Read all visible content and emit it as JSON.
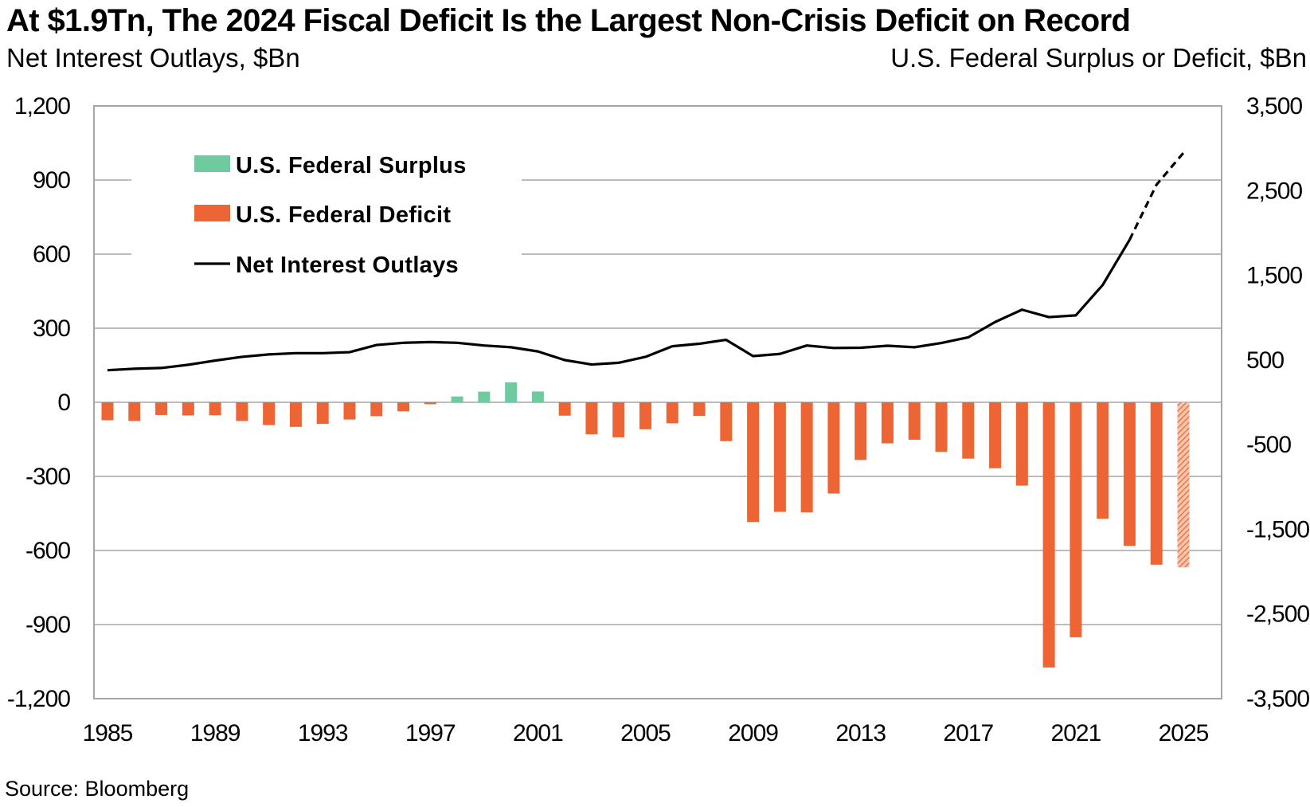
{
  "title": "At $1.9Tn, The 2024 Fiscal Deficit Is the Largest Non-Crisis Deficit on Record",
  "left_axis_title": "Net Interest Outlays, $Bn",
  "right_axis_title": "U.S. Federal Surplus or Deficit, $Bn",
  "source": "Source: Bloomberg",
  "colors": {
    "surplus": "#6fcb9f",
    "deficit": "#ee6535",
    "interest_line": "#000000",
    "grid": "#a6a6a6"
  },
  "chart_data": {
    "type": "bar",
    "title": "At $1.9Tn, The 2024 Fiscal Deficit Is the Largest Non-Crisis Deficit on Record",
    "x_tick_labels": [
      "1985",
      "1989",
      "1993",
      "1997",
      "2001",
      "2005",
      "2009",
      "2013",
      "2017",
      "2021",
      "2025"
    ],
    "left_axis": {
      "label": "Net Interest Outlays, $Bn",
      "ylim": [
        -1200,
        1200
      ],
      "tick_values": [
        1200,
        900,
        600,
        300,
        0,
        -300,
        -600,
        -900,
        -1200
      ],
      "tick_labels": [
        "1,200",
        "900",
        "600",
        "300",
        "0",
        "-300",
        "-600",
        "-900",
        "-1,200"
      ]
    },
    "right_axis": {
      "label": "U.S. Federal Surplus or Deficit, $Bn",
      "ylim": [
        -3500,
        3500
      ],
      "tick_values": [
        3500,
        2500,
        1500,
        500,
        -500,
        -1500,
        -2500,
        -3500
      ],
      "tick_labels": [
        "3,500",
        "2,500",
        "1,500",
        "500",
        "-500",
        "-1,500",
        "-2,500",
        "-3,500"
      ]
    },
    "grid": true,
    "legend": {
      "placement": "top-left",
      "entries": [
        {
          "label": "U.S. Federal Surplus",
          "kind": "bar",
          "series": "surplus"
        },
        {
          "label": "U.S. Federal Deficit",
          "kind": "bar",
          "series": "deficit"
        },
        {
          "label": "Net Interest Outlays",
          "kind": "line",
          "series": "interest"
        }
      ]
    },
    "categories": [
      1985,
      1986,
      1987,
      1988,
      1989,
      1990,
      1991,
      1992,
      1993,
      1994,
      1995,
      1996,
      1997,
      1998,
      1999,
      2000,
      2001,
      2002,
      2003,
      2004,
      2005,
      2006,
      2007,
      2008,
      2009,
      2010,
      2011,
      2012,
      2013,
      2014,
      2015,
      2016,
      2017,
      2018,
      2019,
      2020,
      2021,
      2022,
      2023,
      2024,
      2025
    ],
    "series": [
      {
        "name": "U.S. Federal Surplus or Deficit",
        "axis": "right",
        "values": [
          -212,
          -221,
          -150,
          -155,
          -153,
          -221,
          -269,
          -290,
          -255,
          -203,
          -164,
          -107,
          -22,
          69,
          126,
          236,
          128,
          -158,
          -378,
          -413,
          -318,
          -248,
          -161,
          -459,
          -1413,
          -1294,
          -1300,
          -1077,
          -680,
          -485,
          -442,
          -585,
          -665,
          -779,
          -984,
          -3132,
          -2775,
          -1375,
          -1695,
          -1918,
          -1950
        ],
        "projected_index": 40
      },
      {
        "name": "Net Interest Outlays",
        "axis": "left",
        "values": [
          130,
          136,
          139,
          152,
          169,
          184,
          194,
          199,
          199,
          203,
          232,
          241,
          244,
          241,
          230,
          223,
          206,
          171,
          153,
          160,
          184,
          227,
          237,
          253,
          187,
          196,
          230,
          220,
          221,
          229,
          223,
          240,
          263,
          325,
          375,
          345,
          352,
          475,
          658,
          881,
          1010
        ],
        "dashed_from_index": 38
      }
    ]
  }
}
